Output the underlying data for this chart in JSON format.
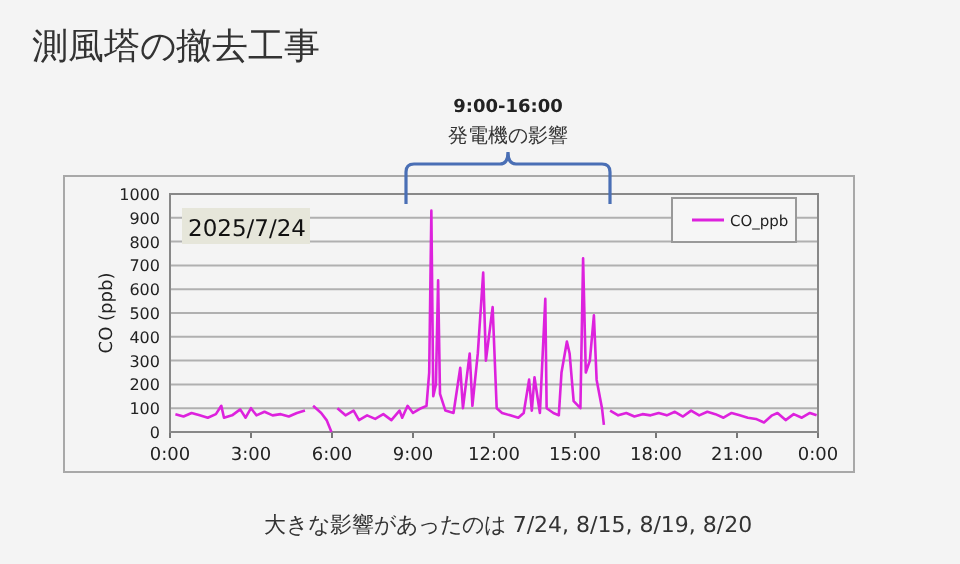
{
  "chart_data": {
    "type": "line",
    "title": "測風塔の撤去工事",
    "annotations": [
      "9:00-16:00",
      "発電機の影響",
      "2025/7/24",
      "大きな影響があったのは 7/24, 8/15, 8/19, 8/20"
    ],
    "ylabel": "CO (ppb)",
    "xlim": [
      0,
      24
    ],
    "xticks": [
      {
        "value": 0,
        "label": "0:00"
      },
      {
        "value": 3,
        "label": "3:00"
      },
      {
        "value": 6,
        "label": "6:00"
      },
      {
        "value": 9,
        "label": "9:00"
      },
      {
        "value": 12,
        "label": "12:00"
      },
      {
        "value": 15,
        "label": "15:00"
      },
      {
        "value": 18,
        "label": "18:00"
      },
      {
        "value": 21,
        "label": "21:00"
      },
      {
        "value": 24,
        "label": "0:00"
      }
    ],
    "ylim": [
      0,
      1000
    ],
    "yticks": [
      0,
      100,
      200,
      300,
      400,
      500,
      600,
      700,
      800,
      900,
      1000
    ],
    "grid": "y",
    "legend": "top right",
    "marker": "none",
    "line_style": "solid",
    "series": [
      {
        "name": "CO_ppb",
        "color": "#dd22dd",
        "x": [
          0.2,
          0.5,
          0.8,
          1.1,
          1.4,
          1.7,
          1.9,
          2.0,
          2.3,
          2.6,
          2.8,
          3.0,
          3.2,
          3.5,
          3.8,
          4.1,
          4.4,
          4.7,
          5.0,
          null,
          5.3,
          5.6,
          5.8,
          5.98,
          null,
          6.2,
          6.5,
          6.8,
          7.0,
          7.3,
          7.6,
          7.9,
          8.2,
          8.5,
          8.6,
          8.8,
          9.0,
          9.3,
          9.5,
          9.6,
          9.68,
          9.75,
          9.85,
          9.93,
          10.0,
          10.2,
          10.5,
          10.75,
          10.85,
          11.1,
          11.2,
          11.4,
          11.6,
          11.7,
          11.95,
          12.1,
          12.3,
          12.6,
          12.9,
          13.1,
          13.3,
          13.4,
          13.5,
          13.7,
          13.9,
          13.95,
          14.2,
          14.4,
          14.5,
          14.7,
          14.8,
          14.95,
          15.2,
          15.3,
          15.4,
          15.55,
          15.7,
          15.8,
          16.0,
          16.07,
          null,
          16.3,
          16.6,
          16.9,
          17.2,
          17.5,
          17.8,
          18.1,
          18.4,
          18.7,
          19.0,
          19.3,
          19.6,
          19.9,
          20.2,
          20.5,
          20.8,
          21.1,
          21.4,
          21.7,
          22.0,
          22.3,
          22.5,
          22.8,
          23.1,
          23.4,
          23.7,
          23.95
        ],
        "values": [
          75,
          65,
          80,
          70,
          60,
          75,
          110,
          60,
          70,
          95,
          60,
          100,
          70,
          85,
          70,
          75,
          65,
          80,
          90,
          null,
          110,
          80,
          50,
          0,
          null,
          100,
          70,
          90,
          50,
          70,
          55,
          75,
          50,
          90,
          60,
          110,
          80,
          100,
          110,
          250,
          930,
          150,
          200,
          637,
          160,
          90,
          80,
          270,
          100,
          330,
          110,
          330,
          670,
          300,
          525,
          100,
          80,
          70,
          60,
          80,
          220,
          90,
          230,
          80,
          560,
          100,
          80,
          70,
          250,
          380,
          330,
          130,
          100,
          730,
          250,
          300,
          490,
          220,
          100,
          30,
          null,
          90,
          70,
          80,
          65,
          75,
          70,
          80,
          70,
          85,
          65,
          90,
          70,
          85,
          75,
          60,
          80,
          70,
          60,
          55,
          40,
          70,
          80,
          50,
          75,
          60,
          80,
          70
        ]
      }
    ]
  }
}
